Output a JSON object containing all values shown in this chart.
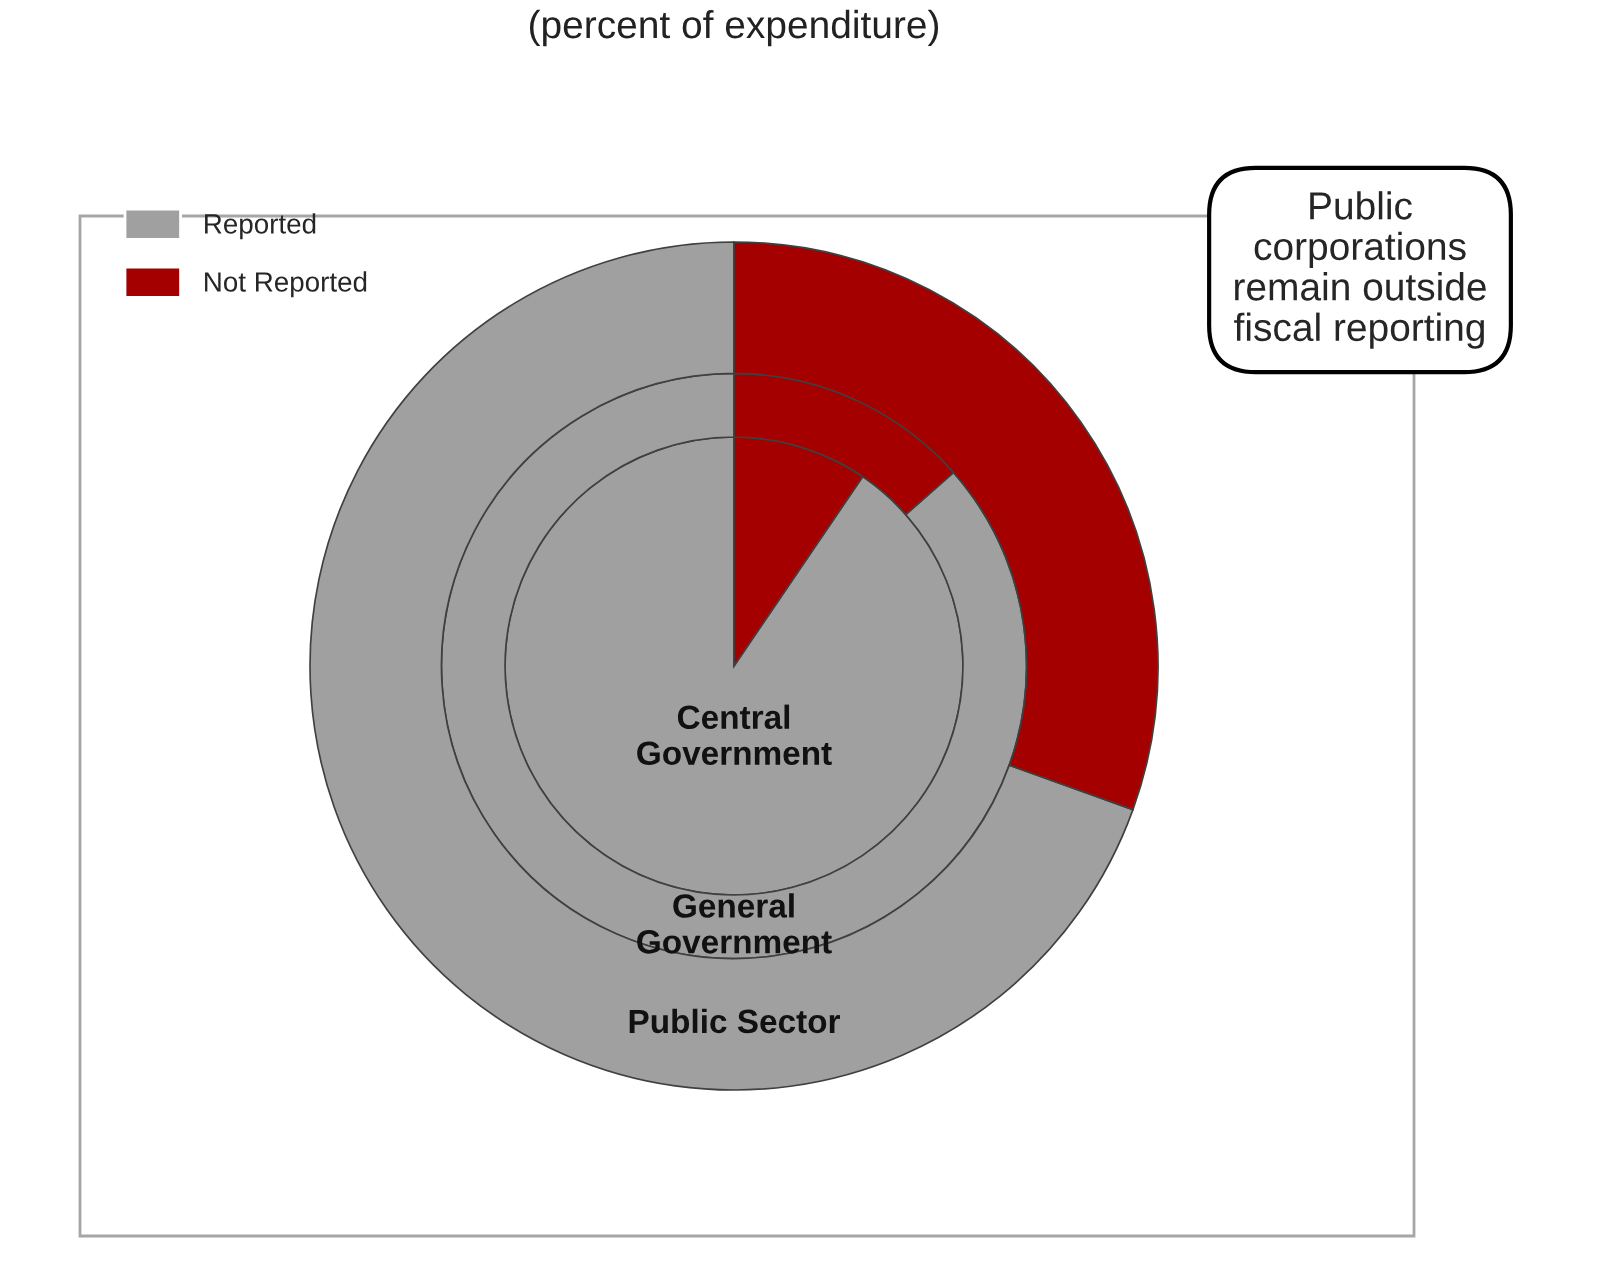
{
  "chart_data": {
    "type": "donut",
    "title": "(percent of expenditure)",
    "categories": [
      "Reported",
      "Not Reported"
    ],
    "colors": [
      "#a0a0a0",
      "#a50000"
    ],
    "series": [
      {
        "name": "Central Government",
        "values": [
          90.5,
          9.5
        ]
      },
      {
        "name": "General Government",
        "values": [
          86.5,
          13.5
        ]
      },
      {
        "name": "Public Sector",
        "values": [
          69.5,
          30.5
        ]
      }
    ],
    "legend": "top left",
    "annotations": [
      "Public\ncorporations\nremain outside\nfiscal reporting"
    ]
  }
}
